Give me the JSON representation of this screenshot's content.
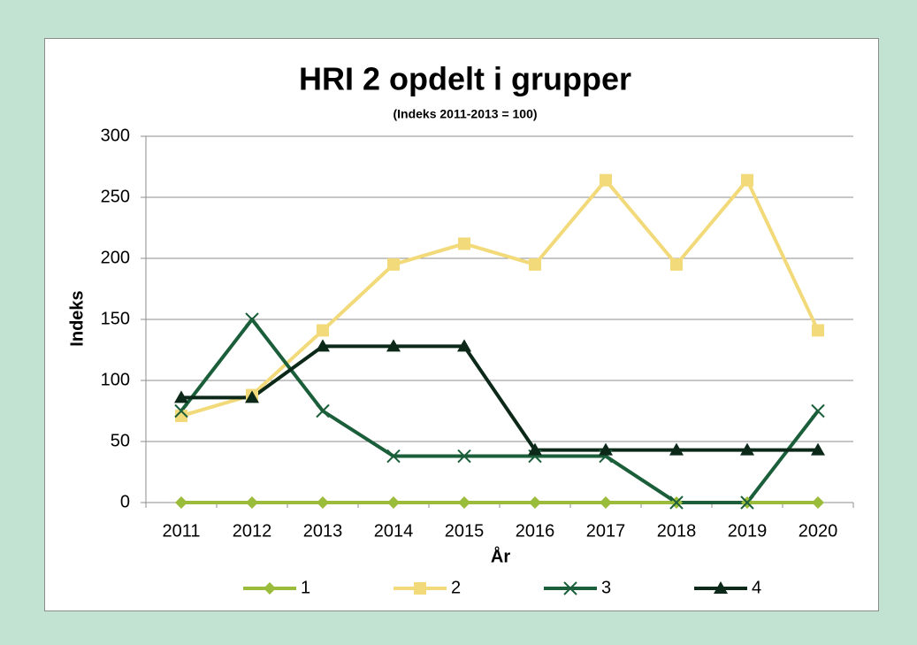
{
  "chart_data": {
    "type": "line",
    "title": "HRI 2 opdelt i grupper",
    "subtitle": "(Indeks 2011-2013 = 100)",
    "x_label": "År",
    "y_label": "Indeks",
    "categories": [
      "2011",
      "2012",
      "2013",
      "2014",
      "2015",
      "2016",
      "2017",
      "2018",
      "2019",
      "2020"
    ],
    "series": [
      {
        "name": "1",
        "color": "#9bbb3b",
        "marker": "diamond",
        "values": [
          0,
          0,
          0,
          0,
          0,
          0,
          0,
          0,
          0,
          0
        ]
      },
      {
        "name": "2",
        "color": "#f2da7a",
        "marker": "square",
        "values": [
          71,
          88,
          141,
          195,
          212,
          195,
          264,
          195,
          264,
          141
        ]
      },
      {
        "name": "3",
        "color": "#1b5e3a",
        "marker": "x",
        "values": [
          75,
          150,
          75,
          38,
          38,
          38,
          38,
          0,
          0,
          75
        ]
      },
      {
        "name": "4",
        "color": "#0c2818",
        "marker": "triangle",
        "values": [
          86,
          86,
          128,
          128,
          128,
          43,
          43,
          43,
          43,
          43
        ]
      }
    ],
    "ylim": [
      0,
      300
    ],
    "yticks": [
      0,
      50,
      100,
      150,
      200,
      250,
      300
    ],
    "grid": true,
    "legend": "bottom"
  }
}
